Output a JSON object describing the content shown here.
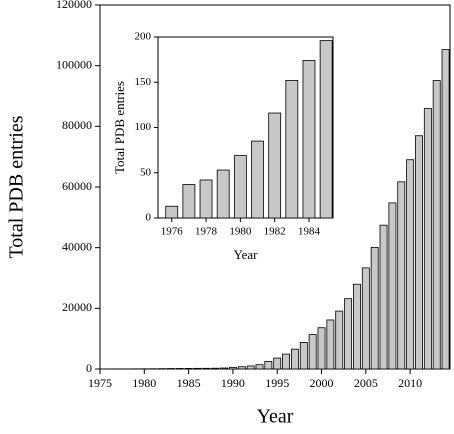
{
  "chart_data": [
    {
      "type": "bar",
      "xlabel": "Year",
      "ylabel": "Total PDB entries",
      "x": [
        1976,
        1977,
        1978,
        1979,
        1980,
        1981,
        1982,
        1983,
        1984,
        1985,
        1986,
        1987,
        1988,
        1989,
        1990,
        1991,
        1992,
        1993,
        1994,
        1995,
        1996,
        1997,
        1998,
        1999,
        2000,
        2001,
        2002,
        2003,
        2004,
        2005,
        2006,
        2007,
        2008,
        2009,
        2010,
        2011,
        2012,
        2013,
        2014
      ],
      "values": [
        13,
        37,
        42,
        53,
        69,
        85,
        116,
        152,
        174,
        196,
        213,
        231,
        262,
        326,
        503,
        756,
        1008,
        1418,
        2483,
        3593,
        4916,
        6548,
        8751,
        11364,
        13610,
        16164,
        19085,
        23187,
        27948,
        33337,
        40094,
        47414,
        54753,
        61703,
        68997,
        76907,
        85869,
        95113,
        105296
      ],
      "color": "#c8c8c8",
      "xlim": [
        1975,
        2014.5
      ],
      "ylim": [
        0,
        120000
      ],
      "xticks": [
        1975,
        1980,
        1985,
        1990,
        1995,
        2000,
        2005,
        2010
      ],
      "yticks": [
        0,
        20000,
        40000,
        60000,
        80000,
        100000,
        120000
      ]
    },
    {
      "type": "bar",
      "xlabel": "Year",
      "ylabel": "Total PDB entries",
      "x": [
        1976,
        1977,
        1978,
        1979,
        1980,
        1981,
        1982,
        1983,
        1984,
        1985
      ],
      "values": [
        13,
        37,
        42,
        53,
        69,
        85,
        116,
        152,
        174,
        196
      ],
      "color": "#c8c8c8",
      "xlim": [
        1975.2,
        1985.4
      ],
      "ylim": [
        0,
        200
      ],
      "xticks": [
        1976,
        1978,
        1980,
        1982,
        1984
      ],
      "yticks": [
        0,
        50,
        100,
        150,
        200
      ]
    }
  ]
}
